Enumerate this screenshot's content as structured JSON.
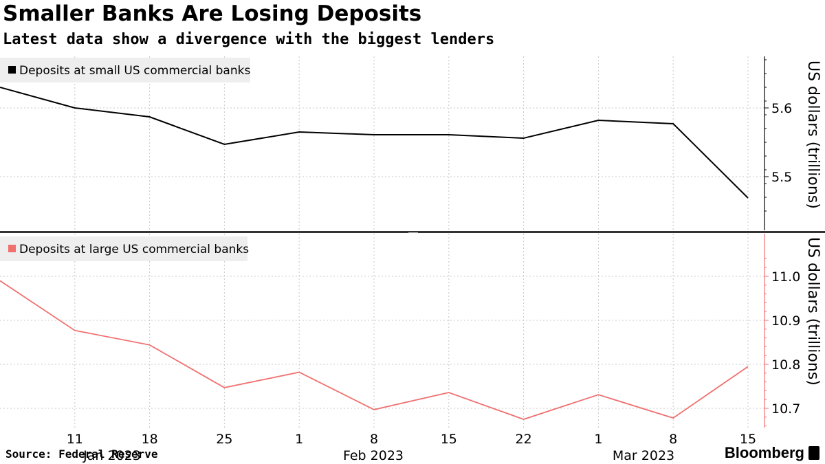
{
  "header": {
    "title": "Smaller Banks Are Losing Deposits",
    "subtitle": "Latest data show a divergence with the biggest lenders"
  },
  "footer": {
    "source": "Source: Federal Reserve",
    "brand": "Bloomberg"
  },
  "colors": {
    "small_series": "#000000",
    "large_series": "#f07070",
    "legend_bg": "#eeeeee",
    "grid": "#c8c8c8"
  },
  "chart_data": [
    {
      "type": "line",
      "title": "",
      "legend_placement": "top-left",
      "grid": true,
      "x": [
        "2023-01-04",
        "2023-01-11",
        "2023-01-18",
        "2023-01-25",
        "2023-02-01",
        "2023-02-08",
        "2023-02-15",
        "2023-02-22",
        "2023-03-01",
        "2023-03-08",
        "2023-03-15"
      ],
      "series": [
        {
          "name": "Deposits at small US commercial banks",
          "values": [
            5.63,
            5.6,
            5.587,
            5.547,
            5.565,
            5.561,
            5.561,
            5.556,
            5.582,
            5.577,
            5.469
          ]
        }
      ],
      "ylabel": "US dollars (trillions)",
      "ylim": [
        5.45,
        5.67
      ],
      "yticks": [
        5.5,
        5.6
      ],
      "yticklabels": [
        "5.5",
        "5.6"
      ]
    },
    {
      "type": "line",
      "title": "",
      "legend_placement": "top-left",
      "grid": true,
      "x": [
        "2023-01-04",
        "2023-01-11",
        "2023-01-18",
        "2023-01-25",
        "2023-02-01",
        "2023-02-08",
        "2023-02-15",
        "2023-02-22",
        "2023-03-01",
        "2023-03-08",
        "2023-03-15"
      ],
      "series": [
        {
          "name": "Deposits at large US commercial banks",
          "values": [
            10.99,
            10.877,
            10.844,
            10.747,
            10.782,
            10.697,
            10.736,
            10.675,
            10.731,
            10.678,
            10.795
          ]
        }
      ],
      "ylabel": "US dollars (trillions)",
      "ylim": [
        10.64,
        11.04
      ],
      "yticks": [
        10.7,
        10.8,
        10.9,
        11.0
      ],
      "yticklabels": [
        "10.7",
        "10.8",
        "10.9",
        "11.0"
      ]
    }
  ],
  "x_axis": {
    "ticks": [
      {
        "date": "2023-01-11",
        "label": "11"
      },
      {
        "date": "2023-01-18",
        "label": "18"
      },
      {
        "date": "2023-01-25",
        "label": "25"
      },
      {
        "date": "2023-02-01",
        "label": "1"
      },
      {
        "date": "2023-02-08",
        "label": "8"
      },
      {
        "date": "2023-02-15",
        "label": "15"
      },
      {
        "date": "2023-02-22",
        "label": "22"
      },
      {
        "date": "2023-03-01",
        "label": "1"
      },
      {
        "date": "2023-03-08",
        "label": "8"
      },
      {
        "date": "2023-03-15",
        "label": "15"
      }
    ],
    "months": [
      {
        "date": "2023-01-18",
        "label": "Jan 2023"
      },
      {
        "date": "2023-02-08",
        "label": "Feb 2023"
      },
      {
        "date": "2023-03-05",
        "label": "Mar 2023"
      }
    ]
  }
}
